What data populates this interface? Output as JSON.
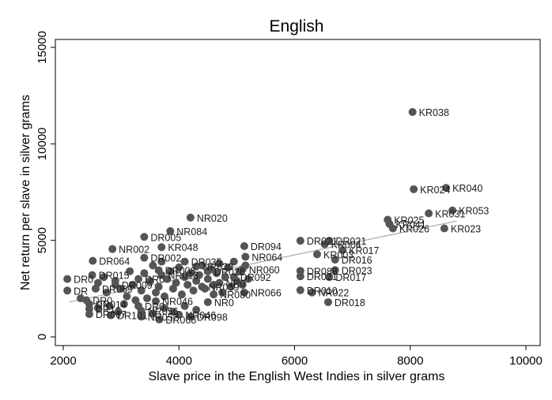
{
  "chart_data": {
    "type": "scatter",
    "title": "English",
    "xlabel": "Slave price in the English West Indies in silver grams",
    "ylabel": "Net return per slave in silver grams",
    "xlim": [
      2000,
      10000
    ],
    "ylim": [
      0,
      15000
    ],
    "xticks": [
      "2000",
      "4000",
      "6000",
      "8000",
      "10000"
    ],
    "yticks": [
      "0",
      "5000",
      "10000",
      "15000"
    ],
    "grid": false,
    "legend": "none",
    "colors": {
      "marker": "#555555",
      "fit_line": "#aaaaaa",
      "frame": "#000000",
      "label": "#1a1a1a"
    },
    "fit_line": {
      "x": [
        2100,
        8800
      ],
      "y": [
        1800,
        6000
      ]
    },
    "points": [
      {
        "x": 8040,
        "y": 11650,
        "label": "KR038"
      },
      {
        "x": 8060,
        "y": 7650,
        "label": "KR024"
      },
      {
        "x": 8620,
        "y": 7720,
        "label": "KR040"
      },
      {
        "x": 8730,
        "y": 6550,
        "label": "KR053"
      },
      {
        "x": 8320,
        "y": 6400,
        "label": "KR031"
      },
      {
        "x": 7610,
        "y": 6070,
        "label": "KR025"
      },
      {
        "x": 7640,
        "y": 5850,
        "label": "KR041"
      },
      {
        "x": 7700,
        "y": 5620,
        "label": "KR026"
      },
      {
        "x": 8590,
        "y": 5620,
        "label": "KR023"
      },
      {
        "x": 4200,
        "y": 6180,
        "label": "NR020"
      },
      {
        "x": 3850,
        "y": 5480,
        "label": "NR084"
      },
      {
        "x": 3400,
        "y": 5180,
        "label": "DR005"
      },
      {
        "x": 3700,
        "y": 4650,
        "label": "KR048"
      },
      {
        "x": 2850,
        "y": 4550,
        "label": "NR002"
      },
      {
        "x": 2510,
        "y": 3940,
        "label": "DR064"
      },
      {
        "x": 3400,
        "y": 4100,
        "label": "DR002"
      },
      {
        "x": 5130,
        "y": 4700,
        "label": "DR094"
      },
      {
        "x": 5150,
        "y": 4150,
        "label": "NR064"
      },
      {
        "x": 6100,
        "y": 4980,
        "label": "DR021"
      },
      {
        "x": 6520,
        "y": 4800,
        "label": "KR004"
      },
      {
        "x": 6600,
        "y": 4980,
        "label": "DR021"
      },
      {
        "x": 6830,
        "y": 4500,
        "label": "KR017"
      },
      {
        "x": 6390,
        "y": 4280,
        "label": "KR003"
      },
      {
        "x": 6700,
        "y": 4000,
        "label": "DR016"
      },
      {
        "x": 6100,
        "y": 3420,
        "label": "DR088"
      },
      {
        "x": 6700,
        "y": 3460,
        "label": "DR023"
      },
      {
        "x": 6100,
        "y": 3140,
        "label": "DR021"
      },
      {
        "x": 6600,
        "y": 3100,
        "label": "DR017"
      },
      {
        "x": 6100,
        "y": 2420,
        "label": "DR010"
      },
      {
        "x": 6300,
        "y": 2300,
        "label": "NR022"
      },
      {
        "x": 6580,
        "y": 1800,
        "label": "DR018"
      },
      {
        "x": 5130,
        "y": 2300,
        "label": "NR066"
      },
      {
        "x": 2070,
        "y": 3000,
        "label": "DR0"
      },
      {
        "x": 2070,
        "y": 2400,
        "label": "DR"
      },
      {
        "x": 2500,
        "y": 3200,
        "label": "DR015"
      },
      {
        "x": 2560,
        "y": 2500,
        "label": "DR069"
      },
      {
        "x": 2900,
        "y": 2700,
        "label": "DR009"
      },
      {
        "x": 3300,
        "y": 3000,
        "label": "DR0"
      },
      {
        "x": 3650,
        "y": 3450,
        "label": "DR008"
      },
      {
        "x": 3700,
        "y": 3200,
        "label": "NR018"
      },
      {
        "x": 4100,
        "y": 3900,
        "label": "DR035"
      },
      {
        "x": 4300,
        "y": 3650,
        "label": "NR030"
      },
      {
        "x": 4500,
        "y": 3400,
        "label": "DR028"
      },
      {
        "x": 4400,
        "y": 2600,
        "label": "NR059"
      },
      {
        "x": 4600,
        "y": 2200,
        "label": "NR080"
      },
      {
        "x": 4950,
        "y": 3100,
        "label": "DR092"
      },
      {
        "x": 5100,
        "y": 3500,
        "label": "NR060"
      },
      {
        "x": 2400,
        "y": 1900,
        "label": "DR0"
      },
      {
        "x": 2450,
        "y": 1700,
        "label": "DR014"
      },
      {
        "x": 2450,
        "y": 1450,
        "label": "DR1"
      },
      {
        "x": 2450,
        "y": 1180,
        "label": "DR067"
      },
      {
        "x": 2820,
        "y": 1120,
        "label": "DR101"
      },
      {
        "x": 3350,
        "y": 1050,
        "label": "NR052"
      },
      {
        "x": 3300,
        "y": 1600,
        "label": "DR0"
      },
      {
        "x": 3350,
        "y": 1350,
        "label": "NR056"
      },
      {
        "x": 3600,
        "y": 1850,
        "label": "NR046"
      },
      {
        "x": 3660,
        "y": 900,
        "label": "DR068"
      },
      {
        "x": 4000,
        "y": 1150,
        "label": "NR046"
      },
      {
        "x": 4200,
        "y": 1050,
        "label": "DR098"
      },
      {
        "x": 4500,
        "y": 1800,
        "label": "NR0"
      },
      {
        "x": 4700,
        "y": 2800,
        "label": "NR0"
      },
      {
        "x": 2300,
        "y": 2000
      },
      {
        "x": 2600,
        "y": 2800
      },
      {
        "x": 2700,
        "y": 3100
      },
      {
        "x": 2750,
        "y": 2300
      },
      {
        "x": 2900,
        "y": 2900
      },
      {
        "x": 3000,
        "y": 2500
      },
      {
        "x": 3100,
        "y": 2100
      },
      {
        "x": 3150,
        "y": 3400
      },
      {
        "x": 3200,
        "y": 2700
      },
      {
        "x": 3250,
        "y": 1900
      },
      {
        "x": 3350,
        "y": 2400
      },
      {
        "x": 3400,
        "y": 3300
      },
      {
        "x": 3450,
        "y": 2000
      },
      {
        "x": 3500,
        "y": 2900
      },
      {
        "x": 3550,
        "y": 3700
      },
      {
        "x": 3600,
        "y": 2300
      },
      {
        "x": 3650,
        "y": 2600
      },
      {
        "x": 3700,
        "y": 3900
      },
      {
        "x": 3750,
        "y": 2100
      },
      {
        "x": 3800,
        "y": 3000
      },
      {
        "x": 3850,
        "y": 3400
      },
      {
        "x": 3900,
        "y": 2500
      },
      {
        "x": 3950,
        "y": 2800
      },
      {
        "x": 4000,
        "y": 3600
      },
      {
        "x": 4050,
        "y": 2200
      },
      {
        "x": 4100,
        "y": 3100
      },
      {
        "x": 4150,
        "y": 2700
      },
      {
        "x": 4200,
        "y": 3300
      },
      {
        "x": 4250,
        "y": 2400
      },
      {
        "x": 4300,
        "y": 2900
      },
      {
        "x": 4350,
        "y": 3200
      },
      {
        "x": 4400,
        "y": 3700
      },
      {
        "x": 4450,
        "y": 2500
      },
      {
        "x": 4500,
        "y": 3000
      },
      {
        "x": 4550,
        "y": 3500
      },
      {
        "x": 4600,
        "y": 2700
      },
      {
        "x": 4650,
        "y": 3300
      },
      {
        "x": 4700,
        "y": 3800
      },
      {
        "x": 4750,
        "y": 2300
      },
      {
        "x": 4800,
        "y": 3100
      },
      {
        "x": 4850,
        "y": 3600
      },
      {
        "x": 4900,
        "y": 2600
      },
      {
        "x": 4950,
        "y": 3900
      },
      {
        "x": 5000,
        "y": 2900
      },
      {
        "x": 5050,
        "y": 3400
      },
      {
        "x": 5100,
        "y": 2700
      },
      {
        "x": 5150,
        "y": 3700
      },
      {
        "x": 5200,
        "y": 3000
      },
      {
        "x": 3750,
        "y": 1500
      },
      {
        "x": 3900,
        "y": 1300
      },
      {
        "x": 4100,
        "y": 1600
      },
      {
        "x": 4300,
        "y": 1400
      },
      {
        "x": 2800,
        "y": 1600
      },
      {
        "x": 2950,
        "y": 1300
      },
      {
        "x": 3050,
        "y": 1700
      },
      {
        "x": 2600,
        "y": 1500
      },
      {
        "x": 3550,
        "y": 1200
      }
    ]
  }
}
